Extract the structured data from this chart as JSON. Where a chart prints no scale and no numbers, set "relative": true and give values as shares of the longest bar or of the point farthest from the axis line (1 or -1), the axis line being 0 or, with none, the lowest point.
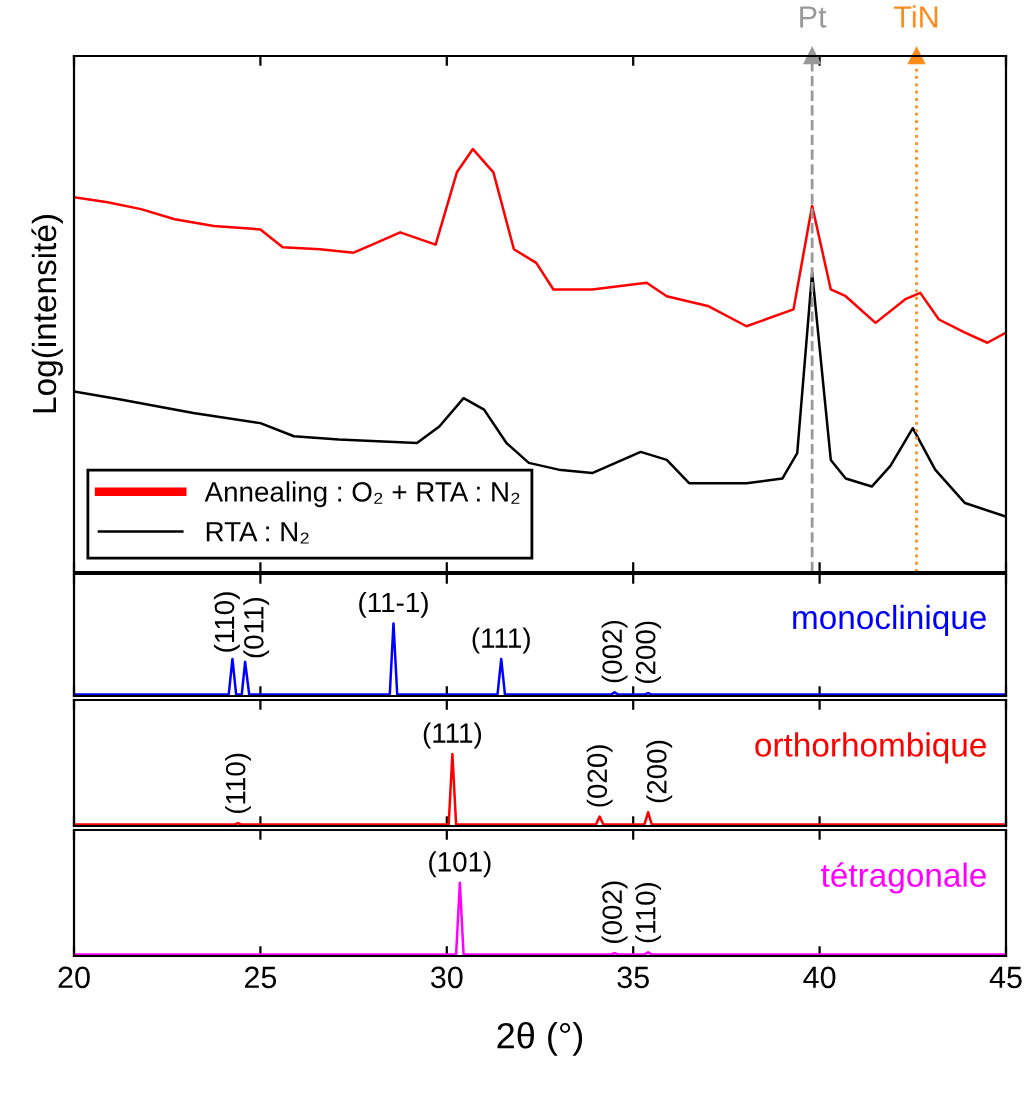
{
  "chart_data": [
    {
      "type": "line",
      "relative": true,
      "ylabel": "Log(intensité)",
      "xlim": [
        20,
        45
      ],
      "xticks": [
        20,
        25,
        30,
        35,
        40,
        45
      ],
      "tick_labels": false,
      "legend": "bottom left",
      "series": [
        {
          "name": "Annealing : O₂ + RTA : N₂",
          "color": "#ff0000",
          "x": [
            20,
            20.9,
            21.8,
            22.7,
            23.75,
            25.0,
            25.6,
            26.6,
            27.5,
            28.0,
            28.75,
            29.7,
            30.27,
            30.7,
            31.25,
            31.8,
            32.4,
            32.86,
            33.9,
            35.36,
            35.9,
            37.0,
            38.04,
            39.3,
            39.8,
            40.3,
            40.7,
            41.5,
            42.3,
            42.7,
            43.2,
            43.9,
            44.5,
            45
          ],
          "values": [
            0.886,
            0.874,
            0.858,
            0.834,
            0.818,
            0.81,
            0.768,
            0.763,
            0.755,
            0.774,
            0.803,
            0.774,
            0.945,
            1.0,
            0.945,
            0.763,
            0.731,
            0.668,
            0.668,
            0.684,
            0.652,
            0.629,
            0.581,
            0.621,
            0.866,
            0.668,
            0.652,
            0.589,
            0.645,
            0.66,
            0.597,
            0.566,
            0.542,
            0.566
          ]
        },
        {
          "name": "RTA : N₂",
          "color": "#000000",
          "x": [
            20,
            21.25,
            23.2,
            25.0,
            25.9,
            27.1,
            29.2,
            29.8,
            30.45,
            31.0,
            31.6,
            32.2,
            33.0,
            33.9,
            35.2,
            35.9,
            36.5,
            38.04,
            39.0,
            39.4,
            39.8,
            40.3,
            40.7,
            41.4,
            41.9,
            42.5,
            43.1,
            43.9,
            45
          ],
          "values": [
            0.427,
            0.408,
            0.376,
            0.352,
            0.321,
            0.313,
            0.305,
            0.344,
            0.411,
            0.384,
            0.305,
            0.258,
            0.242,
            0.234,
            0.284,
            0.265,
            0.21,
            0.21,
            0.221,
            0.281,
            0.708,
            0.265,
            0.221,
            0.202,
            0.251,
            0.34,
            0.242,
            0.163,
            0.131
          ]
        }
      ],
      "ref_lines": [
        {
          "axis": "x",
          "value": 39.8,
          "label": "Pt",
          "color": "#999999",
          "line_style": "dashed"
        },
        {
          "axis": "x",
          "value": 42.6,
          "label": "TiN",
          "color": "#ff8c1a",
          "line_style": "dotted"
        }
      ]
    },
    {
      "type": "line",
      "relative": true,
      "xlim": [
        20,
        45
      ],
      "xticks": [
        20,
        25,
        30,
        35,
        40,
        45
      ],
      "tick_labels": false,
      "series": [
        {
          "name": "monoclinique",
          "color": "#0000ff",
          "x": [
            20,
            24.15,
            24.25,
            24.35,
            24.5,
            24.59,
            24.7,
            28.47,
            28.57,
            28.67,
            31.36,
            31.46,
            31.56,
            34.4,
            34.5,
            34.6,
            35.3,
            35.4,
            35.5,
            45
          ],
          "values": [
            0.02,
            0.02,
            0.51,
            0.02,
            0.02,
            0.47,
            0.02,
            0.02,
            1,
            0.02,
            0.02,
            0.51,
            0.02,
            0.02,
            0.05,
            0.02,
            0.02,
            0.04,
            0.02,
            0.02
          ]
        }
      ],
      "annotations": [
        {
          "text": "(110)",
          "x": 24.25,
          "y": 0.51
        },
        {
          "text": "(011)",
          "x": 24.59,
          "y": 0.47
        },
        {
          "text": "(11-1)",
          "x": 28.57,
          "y": 1
        },
        {
          "text": "(111)",
          "x": 31.46,
          "y": 0.51
        },
        {
          "text": "(002)",
          "x": 34.5,
          "y": 0.05
        },
        {
          "text": "(200)",
          "x": 35.4,
          "y": 0.04
        }
      ]
    },
    {
      "type": "line",
      "relative": true,
      "xlim": [
        20,
        45
      ],
      "xticks": [
        20,
        25,
        30,
        35,
        40,
        45
      ],
      "tick_labels": false,
      "series": [
        {
          "name": "orthorhombique",
          "color": "#ff0000",
          "x": [
            20,
            24.3,
            24.4,
            24.5,
            30.05,
            30.15,
            30.25,
            34.0,
            34.1,
            34.2,
            35.3,
            35.4,
            35.5,
            45
          ],
          "values": [
            0.02,
            0.02,
            0.04,
            0.02,
            0.02,
            1,
            0.02,
            0.02,
            0.13,
            0.02,
            0.02,
            0.19,
            0.02,
            0.02
          ]
        }
      ],
      "annotations": [
        {
          "text": "(110)",
          "x": 24.4,
          "y": 0.04
        },
        {
          "text": "(111)",
          "x": 30.15,
          "y": 1
        },
        {
          "text": "(020)",
          "x": 34.1,
          "y": 0.13
        },
        {
          "text": "(200)",
          "x": 35.4,
          "y": 0.19
        }
      ]
    },
    {
      "type": "line",
      "relative": true,
      "xlabel": "2θ (°)",
      "xlim": [
        20,
        45
      ],
      "xticks": [
        20,
        25,
        30,
        35,
        40,
        45
      ],
      "tick_labels": "x",
      "series": [
        {
          "name": "tétragonale",
          "color": "#ff00ff",
          "x": [
            20,
            30.25,
            30.35,
            30.45,
            34.4,
            34.5,
            34.6,
            35.3,
            35.4,
            35.5,
            45
          ],
          "values": [
            0.02,
            0.02,
            1,
            0.02,
            0.02,
            0.04,
            0.02,
            0.02,
            0.05,
            0.02,
            0.02
          ]
        }
      ],
      "annotations": [
        {
          "text": "(101)",
          "x": 30.35,
          "y": 1
        },
        {
          "text": "(002)",
          "x": 34.5,
          "y": 0.04
        },
        {
          "text": "(110)",
          "x": 35.4,
          "y": 0.05
        }
      ]
    }
  ]
}
